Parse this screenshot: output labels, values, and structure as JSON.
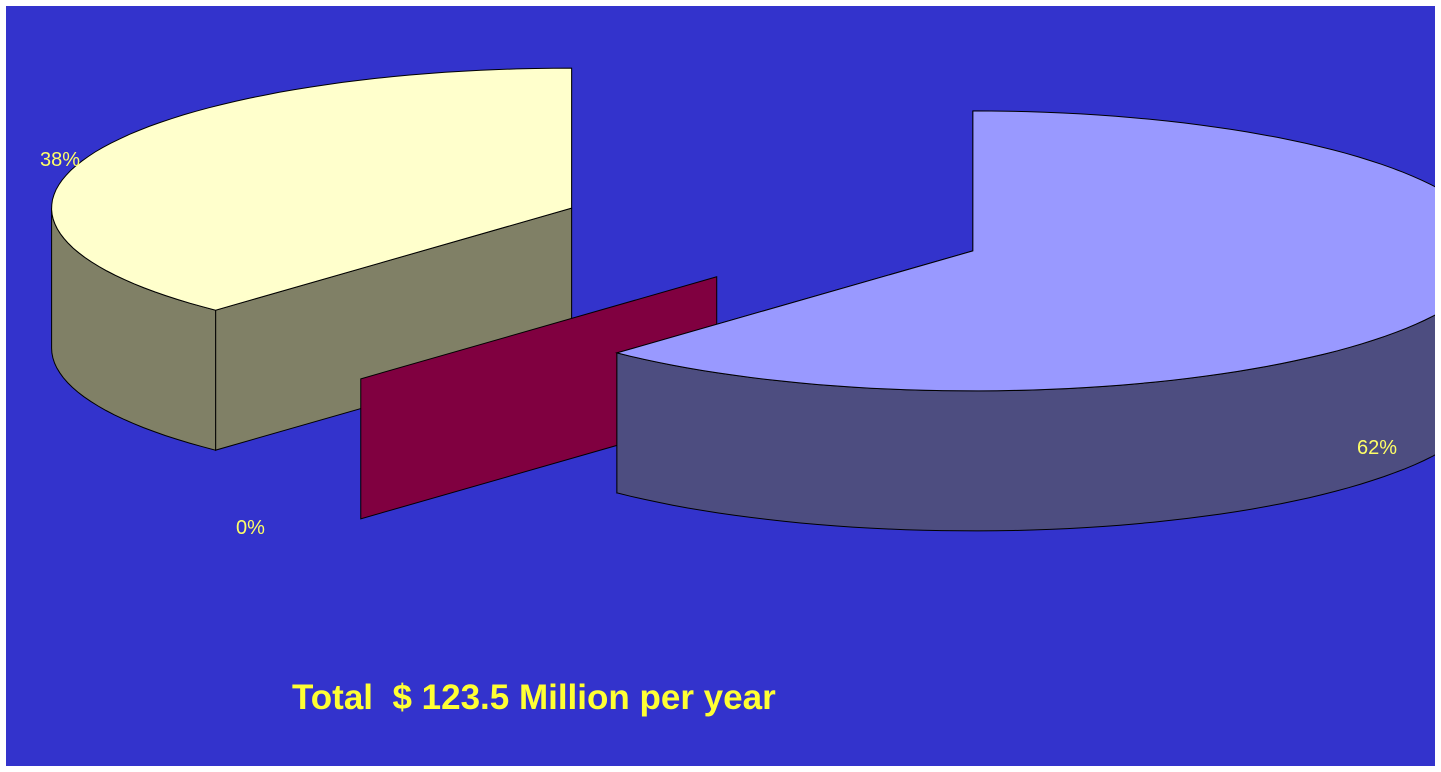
{
  "colors": {
    "background": "#3333CC",
    "label_text": "#FFFF66",
    "total_text": "#FFFF33"
  },
  "chart_data": {
    "type": "pie",
    "style": "3d-exploded",
    "slices": [
      {
        "value": 38,
        "label": "38%",
        "top": "#FFFFCC",
        "side": "#808066"
      },
      {
        "value": 0,
        "label": "0%",
        "top": "#800040",
        "side": "#4A1A33"
      },
      {
        "value": 62,
        "label": "62%",
        "top": "#9999FF",
        "side": "#4D4D80"
      }
    ],
    "legend": "none",
    "annotation": "Total  $ 123.5 Million per year"
  }
}
